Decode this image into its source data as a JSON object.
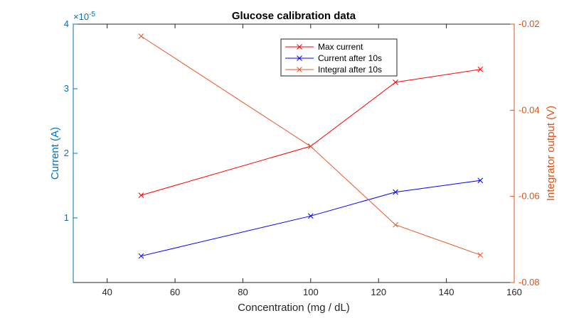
{
  "chart_data": {
    "type": "line",
    "title": "Glucose calibration data",
    "xlabel": "Concentration (mg / dL)",
    "ylabel_left": "Current (A)",
    "ylabel_right": "Integrator output (V)",
    "exponent_label": "×10",
    "exponent_power": "-5",
    "xlim": [
      30,
      160
    ],
    "ylim_left": [
      0,
      4
    ],
    "ylim_right": [
      -0.08,
      -0.02
    ],
    "x_ticks": [
      "40",
      "60",
      "80",
      "100",
      "120",
      "140",
      "160"
    ],
    "y_ticks_left": [
      "1",
      "2",
      "3",
      "4"
    ],
    "y_ticks_right": [
      "-0.02",
      "-0.04",
      "-0.06",
      "-0.08"
    ],
    "x": [
      50,
      100,
      125,
      150
    ],
    "series": [
      {
        "name": "Max current",
        "axis": "left",
        "color": "#ff0000",
        "values": [
          1.35,
          2.11,
          3.1,
          3.3
        ]
      },
      {
        "name": "Current after 10s",
        "axis": "left",
        "color": "#0000ff",
        "values": [
          0.41,
          1.03,
          1.4,
          1.58
        ]
      },
      {
        "name": "Integral after 10s",
        "axis": "right",
        "color": "#e8572a",
        "values": [
          -0.0228,
          -0.0484,
          -0.0666,
          -0.0736
        ]
      }
    ],
    "colors": {
      "left_axis": "#0072bd",
      "right_axis": "#d95319"
    },
    "legend_position": "top-right-inside",
    "grid": false
  }
}
